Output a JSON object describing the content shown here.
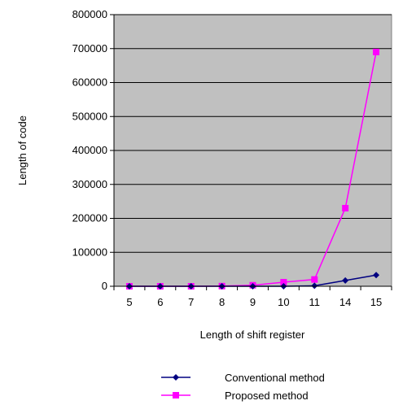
{
  "chart_data": {
    "type": "line",
    "categories": [
      "5",
      "6",
      "7",
      "8",
      "9",
      "10",
      "11",
      "14",
      "15"
    ],
    "series": [
      {
        "name": "Conventional method",
        "color": "#000080",
        "marker": "diamond",
        "values": [
          0,
          0,
          0,
          0,
          0,
          0,
          1500,
          17000,
          33000
        ]
      },
      {
        "name": "Proposed method",
        "color": "#ff00ff",
        "marker": "square",
        "values": [
          0,
          0,
          0,
          500,
          3000,
          12000,
          20000,
          230000,
          690000
        ]
      }
    ],
    "xlabel": "Length of shift register",
    "ylabel": "Length of code",
    "ylim": [
      0,
      800000
    ],
    "yticks": [
      "0",
      "100000",
      "200000",
      "300000",
      "400000",
      "500000",
      "600000",
      "700000",
      "800000"
    ],
    "grid": true,
    "legend_position": "bottom",
    "plot_background": "#c0c0c0",
    "gridline_color": "#000000"
  }
}
